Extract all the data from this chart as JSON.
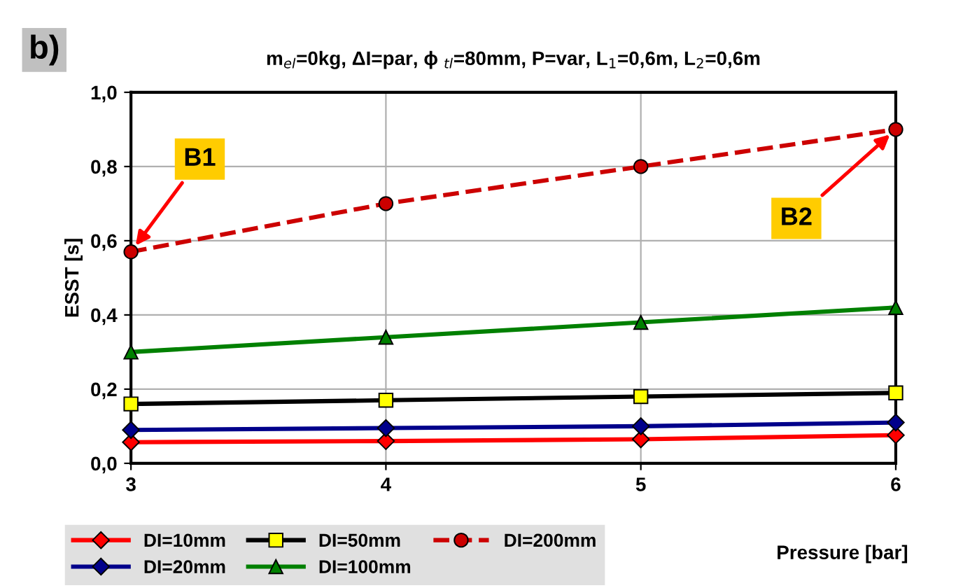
{
  "chart_data": {
    "type": "line",
    "title": "m$_{el}$=0kg, ΔI=par, ϕ $_{tl}$=80mm, P=var, L$_{1}$=0,6m, L$_{2}$=0,6m",
    "xlabel": "Pressure [bar]",
    "ylabel": "ESST [s]",
    "x": [
      3,
      4,
      5,
      6
    ],
    "series": [
      {
        "name": "DI=10mm",
        "color": "#ff0000",
        "marker": "diamond",
        "line_style": "solid",
        "values": [
          0.057,
          0.06,
          0.065,
          0.076
        ]
      },
      {
        "name": "DI=20mm",
        "color": "#00008b",
        "marker": "diamond",
        "line_style": "solid",
        "values": [
          0.09,
          0.095,
          0.1,
          0.11
        ]
      },
      {
        "name": "DI=50mm",
        "color": "#000000",
        "marker": "square",
        "line_style": "solid",
        "values": [
          0.16,
          0.17,
          0.18,
          0.19
        ]
      },
      {
        "name": "DI=100mm",
        "color": "#008000",
        "marker": "triangle",
        "line_style": "solid",
        "values": [
          0.3,
          0.34,
          0.38,
          0.42
        ]
      },
      {
        "name": "DI=200mm",
        "color": "#cc0000",
        "marker": "circle",
        "line_style": "dashed",
        "values": [
          0.57,
          0.7,
          0.8,
          0.9
        ]
      }
    ],
    "xlim": [
      3,
      6
    ],
    "xticks": [
      3,
      4,
      5,
      6
    ],
    "ylim": [
      0,
      1.0
    ],
    "yticks": [
      {
        "value": 0,
        "label": "0,0"
      },
      {
        "value": 0.2,
        "label": "0,2"
      },
      {
        "value": 0.4,
        "label": "0,4"
      },
      {
        "value": 0.6,
        "label": "0,6"
      },
      {
        "value": 0.8,
        "label": "0,8"
      },
      {
        "value": 1.0,
        "label": "1,0"
      }
    ],
    "grid": true,
    "legend": "bottom left",
    "annotations": [
      "b)",
      {
        "text": "B1",
        "x": 3,
        "y": 0.57
      },
      {
        "text": "B2",
        "x": 6,
        "y": 0.9
      }
    ]
  }
}
